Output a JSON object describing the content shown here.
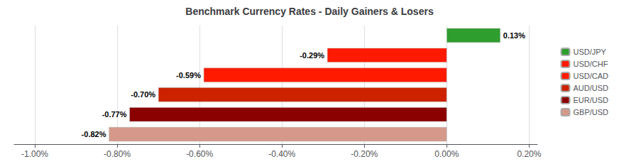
{
  "chart_data": {
    "type": "bar",
    "orientation": "horizontal",
    "title": "Benchmark Currency Rates - Daily Gainers & Losers",
    "categories": [
      "USD/JPY",
      "USD/CHF",
      "USD/CAD",
      "AUD/USD",
      "EUR/USD",
      "GBP/USD"
    ],
    "values": [
      0.13,
      -0.29,
      -0.59,
      -0.7,
      -0.77,
      -0.82
    ],
    "value_labels": [
      "0.13%",
      "-0.29%",
      "-0.59%",
      "-0.70%",
      "-0.77%",
      "-0.82%"
    ],
    "data_labels": true,
    "colors": [
      "#2e9e2e",
      "#ff1a00",
      "#ff1a00",
      "#cc2200",
      "#8b0000",
      "#d4998a"
    ],
    "xlim": [
      -1.05,
      0.22
    ],
    "xticks": [
      {
        "value": -1.0,
        "label": "-1.00%"
      },
      {
        "value": -0.8,
        "label": "-0.80%"
      },
      {
        "value": -0.6,
        "label": "-0.60%"
      },
      {
        "value": -0.4,
        "label": "-0.40%"
      },
      {
        "value": -0.2,
        "label": "-0.20%"
      },
      {
        "value": 0.0,
        "label": "0.00%"
      },
      {
        "value": 0.2,
        "label": "0.20%"
      }
    ],
    "tick_labels": "x",
    "grid": true,
    "legend": "right"
  }
}
